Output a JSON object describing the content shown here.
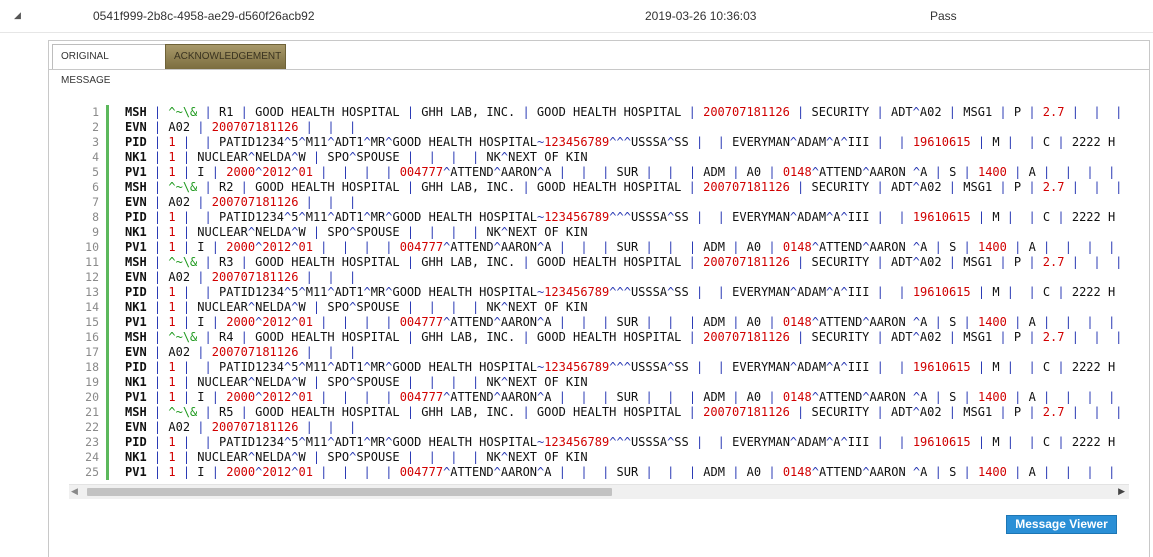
{
  "header": {
    "message_id": "0541f999-2b8c-4958-ae29-d560f26acb92",
    "timestamp": "2019-03-26 10:36:03",
    "status": "Pass",
    "caret": "◢"
  },
  "tabs": [
    {
      "label": "ORIGINAL MESSAGE",
      "active": true
    },
    {
      "label": "ACKNOWLEDGEMENT",
      "active": false
    }
  ],
  "message": {
    "lines": [
      "MSH|^~\\&|R1|GOOD HEALTH HOSPITAL|GHH LAB, INC.|GOOD HEALTH HOSPITAL|200707181126|SECURITY|ADT^A02|MSG1|P|2.7|||",
      "EVN|A02|200707181126|||",
      "PID|1||PATID1234^5^M11^ADT1^MR^GOOD HEALTH HOSPITAL~123456789^^^USSSA^SS||EVERYMAN^ADAM^A^III||19610615|M||C|2222 H",
      "NK1|1|NUCLEAR^NELDA^W|SPO^SPOUSE||||NK^NEXT OF KIN",
      "PV1|1|I|2000^2012^01||||004777^ATTEND^AARON^A|||SUR|||ADM|A0|0148^ATTEND^AARON ^A|S|1400|A|||||||||||",
      "MSH|^~\\&|R2|GOOD HEALTH HOSPITAL|GHH LAB, INC.|GOOD HEALTH HOSPITAL|200707181126|SECURITY|ADT^A02|MSG1|P|2.7|||",
      "EVN|A02|200707181126|||",
      "PID|1||PATID1234^5^M11^ADT1^MR^GOOD HEALTH HOSPITAL~123456789^^^USSSA^SS||EVERYMAN^ADAM^A^III||19610615|M||C|2222 H",
      "NK1|1|NUCLEAR^NELDA^W|SPO^SPOUSE||||NK^NEXT OF KIN",
      "PV1|1|I|2000^2012^01||||004777^ATTEND^AARON^A|||SUR|||ADM|A0|0148^ATTEND^AARON ^A|S|1400|A|||||||||||",
      "MSH|^~\\&|R3|GOOD HEALTH HOSPITAL|GHH LAB, INC.|GOOD HEALTH HOSPITAL|200707181126|SECURITY|ADT^A02|MSG1|P|2.7|||",
      "EVN|A02|200707181126|||",
      "PID|1||PATID1234^5^M11^ADT1^MR^GOOD HEALTH HOSPITAL~123456789^^^USSSA^SS||EVERYMAN^ADAM^A^III||19610615|M||C|2222 H",
      "NK1|1|NUCLEAR^NELDA^W|SPO^SPOUSE||||NK^NEXT OF KIN",
      "PV1|1|I|2000^2012^01||||004777^ATTEND^AARON^A|||SUR|||ADM|A0|0148^ATTEND^AARON ^A|S|1400|A|||||||||||",
      "MSH|^~\\&|R4|GOOD HEALTH HOSPITAL|GHH LAB, INC.|GOOD HEALTH HOSPITAL|200707181126|SECURITY|ADT^A02|MSG1|P|2.7|||",
      "EVN|A02|200707181126|||",
      "PID|1||PATID1234^5^M11^ADT1^MR^GOOD HEALTH HOSPITAL~123456789^^^USSSA^SS||EVERYMAN^ADAM^A^III||19610615|M||C|2222 H",
      "NK1|1|NUCLEAR^NELDA^W|SPO^SPOUSE||||NK^NEXT OF KIN",
      "PV1|1|I|2000^2012^01||||004777^ATTEND^AARON^A|||SUR|||ADM|A0|0148^ATTEND^AARON ^A|S|1400|A|||||||||||",
      "MSH|^~\\&|R5|GOOD HEALTH HOSPITAL|GHH LAB, INC.|GOOD HEALTH HOSPITAL|200707181126|SECURITY|ADT^A02|MSG1|P|2.7|||",
      "EVN|A02|200707181126|||",
      "PID|1||PATID1234^5^M11^ADT1^MR^GOOD HEALTH HOSPITAL~123456789^^^USSSA^SS||EVERYMAN^ADAM^A^III||19610615|M||C|2222 H",
      "NK1|1|NUCLEAR^NELDA^W|SPO^SPOUSE||||NK^NEXT OF KIN",
      "PV1|1|I|2000^2012^01||||004777^ATTEND^AARON^A|||SUR|||ADM|A0|0148^ATTEND^AARON ^A|S|1400|A|||||||||||"
    ]
  },
  "scrollbar": {
    "left_arrow": "◀",
    "right_arrow": "▶"
  },
  "buttons": {
    "message_viewer": "Message Viewer"
  },
  "colors": {
    "separator": "#2b3bb5",
    "value_highlight": "#d10000",
    "encoding_chars": "#1f9a1f",
    "gutter": "#5cb85c",
    "button": "#2a8fd6"
  }
}
